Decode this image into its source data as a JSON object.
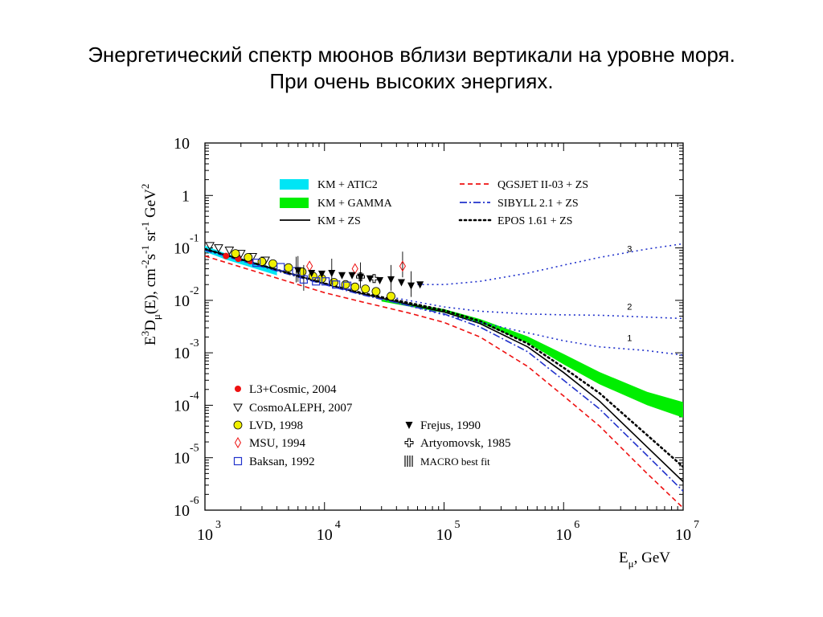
{
  "slide": {
    "title_line1": "Энергетический спектр мюонов вблизи вертикали на уровне моря.",
    "title_line2": "При очень высоких энергиях."
  },
  "chart_data": {
    "type": "scatter",
    "title": "",
    "xlabel": "E",
    "xlabel_sub": "μ",
    "xlabel_unit": ", GeV",
    "ylabel": "E³D_μ(E), cm⁻²s⁻¹sr⁻¹ GeV²",
    "ylabel_parts": {
      "e": "E",
      "e_sup": "3",
      "d": "D",
      "mu": "μ",
      "rest": "(E), cm",
      "cm_sup": "-2",
      "s": "s",
      "s_sup": "-1",
      "sr": " sr",
      "sr_sup": "-1",
      "gev": " GeV",
      "gev_sup": "2"
    },
    "x_scale": "log",
    "y_scale": "log",
    "xlim": [
      1000,
      10000000
    ],
    "ylim": [
      1e-06,
      10
    ],
    "x_ticks": [
      {
        "base": "10",
        "exp": "3",
        "value": 1000
      },
      {
        "base": "10",
        "exp": "4",
        "value": 10000
      },
      {
        "base": "10",
        "exp": "5",
        "value": 100000
      },
      {
        "base": "10",
        "exp": "6",
        "value": 1000000
      },
      {
        "base": "10",
        "exp": "7",
        "value": 10000000
      }
    ],
    "y_ticks": [
      {
        "base": "10",
        "exp": "",
        "value": 10
      },
      {
        "base": "1",
        "exp": "",
        "value": 1
      },
      {
        "base": "10",
        "exp": "-1",
        "value": 0.1
      },
      {
        "base": "10",
        "exp": "-2",
        "value": 0.01
      },
      {
        "base": "10",
        "exp": "-3",
        "value": 0.001
      },
      {
        "base": "10",
        "exp": "-4",
        "value": 0.0001
      },
      {
        "base": "10",
        "exp": "-5",
        "value": 1e-05
      },
      {
        "base": "10",
        "exp": "-6",
        "value": 1e-06
      }
    ],
    "grid": false,
    "legend_models": [
      {
        "label": "KM + ATIC2",
        "kind": "band",
        "color": "#00e5f5"
      },
      {
        "label": "KM + GAMMA",
        "kind": "band",
        "color": "#00ee00"
      },
      {
        "label": "KM + ZS",
        "kind": "line",
        "color": "#000000",
        "dash": "solid"
      },
      {
        "label": "QGSJET II-03 + ZS",
        "kind": "line",
        "color": "#ee1111",
        "dash": "dashed"
      },
      {
        "label": "SIBYLL 2.1 + ZS",
        "kind": "line",
        "color": "#2233cc",
        "dash": "dashdot"
      },
      {
        "label": "EPOS 1.61 + ZS",
        "kind": "line",
        "color": "#000000",
        "dash": "dotted"
      }
    ],
    "legend_data": [
      {
        "label": "L3+Cosmic, 2004",
        "marker": "filled-circle",
        "color": "#ee1111"
      },
      {
        "label": "CosmoALEPH, 2007",
        "marker": "open-triangle-down",
        "color": "#000000"
      },
      {
        "label": "LVD, 1998",
        "marker": "yellow-circle",
        "color": "#f0f000"
      },
      {
        "label": "MSU, 1994",
        "marker": "open-diamond",
        "color": "#ee1111"
      },
      {
        "label": "Baksan, 1992",
        "marker": "open-square",
        "color": "#2233cc"
      },
      {
        "label": "Frejus, 1990",
        "marker": "filled-triangle-down",
        "color": "#000000"
      },
      {
        "label": "Artyomovsk, 1985",
        "marker": "open-cross",
        "color": "#000000"
      },
      {
        "label": "MACRO best fit",
        "marker": "bars",
        "color": "#000000"
      }
    ],
    "series": [
      {
        "label_ref": "KM + ZS",
        "x": [
          1000,
          10000,
          20000,
          50000,
          100000,
          200000,
          500000,
          1000000,
          2000000,
          5000000,
          10000000
        ],
        "y": [
          0.095,
          0.021,
          0.0135,
          0.0085,
          0.006,
          0.0036,
          0.0013,
          0.00042,
          0.00012,
          1.6e-05,
          3.5e-06
        ]
      },
      {
        "label_ref": "QGSJET II-03 + ZS",
        "x": [
          1000,
          10000,
          20000,
          50000,
          100000,
          200000,
          500000,
          1000000,
          2000000,
          5000000,
          10000000
        ],
        "y": [
          0.07,
          0.014,
          0.0095,
          0.0058,
          0.0038,
          0.002,
          0.00055,
          0.00015,
          4e-05,
          5e-06,
          1.1e-06
        ]
      },
      {
        "label_ref": "SIBYLL 2.1 + ZS",
        "x": [
          1000,
          10000,
          20000,
          50000,
          100000,
          200000,
          500000,
          1000000,
          2000000,
          5000000,
          10000000
        ],
        "y": [
          0.09,
          0.02,
          0.013,
          0.008,
          0.0055,
          0.0031,
          0.00105,
          0.0003,
          8.5e-05,
          1.1e-05,
          2.3e-06
        ]
      },
      {
        "label_ref": "EPOS 1.61 + ZS",
        "x": [
          1000,
          10000,
          20000,
          50000,
          100000,
          200000,
          500000,
          1000000,
          2000000,
          5000000,
          10000000
        ],
        "y": [
          0.095,
          0.021,
          0.014,
          0.009,
          0.0065,
          0.004,
          0.0015,
          0.00052,
          0.00017,
          2.7e-05,
          6.7e-06
        ]
      },
      {
        "label_ref": "prompt 3",
        "label": "3",
        "x": [
          60000,
          100000,
          200000,
          500000,
          1000000,
          2000000,
          5000000,
          10000000
        ],
        "y": [
          0.02,
          0.02,
          0.023,
          0.033,
          0.047,
          0.066,
          0.095,
          0.12
        ]
      },
      {
        "label_ref": "prompt 2",
        "label": "2",
        "x": [
          40000,
          100000,
          200000,
          500000,
          1000000,
          2000000,
          5000000,
          10000000
        ],
        "y": [
          0.011,
          0.0075,
          0.0062,
          0.0055,
          0.0053,
          0.0052,
          0.0048,
          0.0045
        ]
      },
      {
        "label_ref": "prompt 1",
        "label": "1",
        "x": [
          40000,
          100000,
          200000,
          500000,
          1000000,
          2000000,
          5000000,
          10000000
        ],
        "y": [
          0.009,
          0.0053,
          0.0038,
          0.0024,
          0.0017,
          0.0013,
          0.0011,
          0.0009
        ]
      }
    ],
    "bands": [
      {
        "label_ref": "KM + GAMMA",
        "x": [
          30000,
          100000,
          200000,
          500000,
          1000000,
          2000000,
          5000000,
          10000000
        ],
        "y_low": [
          0.0095,
          0.0058,
          0.0037,
          0.00155,
          0.0006,
          0.00025,
          0.0001,
          5.8e-05
        ],
        "y_high": [
          0.0105,
          0.0068,
          0.0044,
          0.00205,
          0.00095,
          0.00043,
          0.00018,
          0.000115
        ]
      },
      {
        "label_ref": "KM + ATIC2",
        "x": [
          1000,
          1500,
          2500,
          4000
        ],
        "y_low": [
          0.085,
          0.06,
          0.042,
          0.03
        ],
        "y_high": [
          0.11,
          0.078,
          0.055,
          0.04
        ]
      }
    ],
    "points": [
      {
        "set": "L3+Cosmic, 2004",
        "x": [
          1500,
          1900,
          2400
        ],
        "y": [
          0.07,
          0.062,
          0.056
        ]
      },
      {
        "set": "CosmoALEPH, 2007",
        "x": [
          1100,
          1300,
          1600,
          2000,
          2500,
          3200
        ],
        "y": [
          0.11,
          0.1,
          0.09,
          0.078,
          0.068,
          0.058
        ]
      },
      {
        "set": "LVD, 1998",
        "x": [
          1800,
          2300,
          3000,
          3700,
          5000,
          6500,
          8000,
          9500,
          12000,
          15000,
          18000,
          22000,
          27000,
          36000
        ],
        "y": [
          0.078,
          0.066,
          0.055,
          0.05,
          0.042,
          0.035,
          0.029,
          0.026,
          0.022,
          0.02,
          0.018,
          0.0165,
          0.0148,
          0.012
        ]
      },
      {
        "set": "MSU, 1994",
        "x": [
          7500,
          18000,
          45000
        ],
        "y": [
          0.045,
          0.04,
          0.045
        ]
      },
      {
        "set": "Baksan, 1992",
        "x": [
          2700,
          4300,
          5800,
          6700,
          8500,
          10200,
          12500,
          15500
        ],
        "y": [
          0.052,
          0.043,
          0.036,
          0.025,
          0.023,
          0.023,
          0.02,
          0.019
        ]
      },
      {
        "set": "Frejus, 1990",
        "x": [
          6000,
          7800,
          9500,
          11500,
          14000,
          17000,
          20000,
          24000,
          29000,
          36000,
          44000,
          53000,
          63000
        ],
        "y": [
          0.037,
          0.033,
          0.032,
          0.033,
          0.03,
          0.03,
          0.028,
          0.026,
          0.024,
          0.025,
          0.022,
          0.019,
          0.02
        ]
      },
      {
        "set": "Artyomovsk, 1985",
        "x": [
          20000,
          26000
        ],
        "y": [
          0.028,
          0.026
        ]
      }
    ]
  }
}
